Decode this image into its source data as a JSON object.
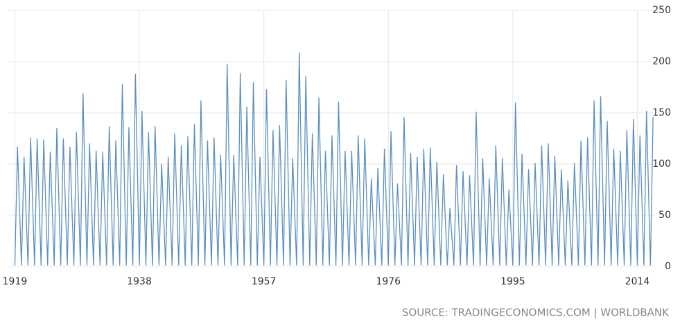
{
  "chart_data": {
    "type": "line",
    "source": "SOURCE: TRADINGECONOMICS.COM | WORLDBANK",
    "x": [
      1919,
      1919.4,
      1920,
      1920.4,
      1921,
      1921.4,
      1922,
      1922.4,
      1923,
      1923.4,
      1924,
      1924.4,
      1925,
      1925.4,
      1926,
      1926.4,
      1927,
      1927.4,
      1928,
      1928.4,
      1929,
      1929.4,
      1930,
      1930.4,
      1931,
      1931.4,
      1932,
      1932.4,
      1933,
      1933.4,
      1934,
      1934.4,
      1935,
      1935.4,
      1936,
      1936.4,
      1937,
      1937.4,
      1938,
      1938.4,
      1939,
      1939.4,
      1940,
      1940.4,
      1941,
      1941.4,
      1942,
      1942.4,
      1943,
      1943.4,
      1944,
      1944.4,
      1945,
      1945.4,
      1946,
      1946.4,
      1947,
      1947.4,
      1948,
      1948.4,
      1949,
      1949.4,
      1950,
      1950.4,
      1951,
      1951.4,
      1952,
      1952.4,
      1953,
      1953.4,
      1954,
      1954.4,
      1955,
      1955.4,
      1956,
      1956.4,
      1957,
      1957.4,
      1958,
      1958.4,
      1959,
      1959.4,
      1960,
      1960.4,
      1961,
      1961.4,
      1962,
      1962.4,
      1963,
      1963.4,
      1964,
      1964.4,
      1965,
      1965.4,
      1966,
      1966.4,
      1967,
      1967.4,
      1968,
      1968.4,
      1969,
      1969.4,
      1970,
      1970.4,
      1971,
      1971.4,
      1972,
      1972.4,
      1973,
      1973.4,
      1974,
      1974.4,
      1975,
      1975.4,
      1976,
      1976.4,
      1977,
      1977.4,
      1978,
      1978.4,
      1979,
      1979.4,
      1980,
      1980.4,
      1981,
      1981.4,
      1982,
      1982.4,
      1983,
      1983.4,
      1984,
      1984.4,
      1985,
      1985.4,
      1986,
      1986.4,
      1987,
      1987.4,
      1988,
      1988.4,
      1989,
      1989.4,
      1990,
      1990.4,
      1991,
      1991.4,
      1992,
      1992.4,
      1993,
      1993.4,
      1994,
      1994.4,
      1995,
      1995.4,
      1996,
      1996.4,
      1997,
      1997.4,
      1998,
      1998.4,
      1999,
      1999.4,
      2000,
      2000.4,
      2001,
      2001.4,
      2002,
      2002.4,
      2003,
      2003.4,
      2004,
      2004.4,
      2005,
      2005.4,
      2006,
      2006.4,
      2007,
      2007.4,
      2008,
      2008.4,
      2009,
      2009.4,
      2010,
      2010.4,
      2011,
      2011.4,
      2012,
      2012.4,
      2013,
      2013.4,
      2014,
      2014.4,
      2015,
      2015.4,
      2016,
      2016.4
    ],
    "series": [
      {
        "color": "#5b8fbf",
        "values": [
          1,
          117,
          1,
          107,
          1,
          126,
          1,
          125,
          1,
          124,
          1,
          112,
          1,
          135,
          1,
          125,
          1,
          117,
          1,
          131,
          1,
          169,
          1,
          120,
          1,
          113,
          1,
          112,
          1,
          137,
          1,
          123,
          1,
          178,
          1,
          136,
          1,
          188,
          1,
          152,
          1,
          131,
          1,
          137,
          1,
          100,
          1,
          107,
          1,
          130,
          1,
          118,
          1,
          127,
          1,
          139,
          1,
          162,
          1,
          123,
          1,
          126,
          1,
          109,
          1,
          198,
          1,
          109,
          1,
          189,
          1,
          156,
          1,
          180,
          1,
          107,
          1,
          173,
          1,
          133,
          1,
          138,
          1,
          182,
          1,
          106,
          1,
          209,
          1,
          186,
          1,
          130,
          1,
          165,
          1,
          113,
          1,
          128,
          1,
          161,
          1,
          113,
          1,
          113,
          1,
          128,
          1,
          125,
          1,
          86,
          1,
          96,
          1,
          115,
          1,
          132,
          1,
          81,
          1,
          146,
          1,
          111,
          1,
          107,
          1,
          115,
          1,
          116,
          1,
          102,
          1,
          90,
          1,
          57,
          1,
          99,
          1,
          93,
          1,
          89,
          1,
          151,
          1,
          106,
          1,
          86,
          1,
          118,
          1,
          106,
          1,
          75,
          1,
          160,
          1,
          110,
          1,
          95,
          1,
          101,
          1,
          118,
          1,
          120,
          1,
          108,
          1,
          95,
          1,
          84,
          1,
          101,
          1,
          123,
          1,
          126,
          1,
          162,
          1,
          166,
          1,
          142,
          1,
          115,
          1,
          113,
          1,
          133,
          1,
          144,
          1,
          128,
          1,
          152,
          1,
          146
        ]
      }
    ],
    "xlim": [
      1918,
      2016.7
    ],
    "xticks": [
      1919,
      1938,
      1957,
      1976,
      1995,
      2014
    ],
    "ylim": [
      0,
      250
    ],
    "yticks": [
      0,
      50,
      100,
      150,
      200,
      250
    ],
    "grid": true
  }
}
